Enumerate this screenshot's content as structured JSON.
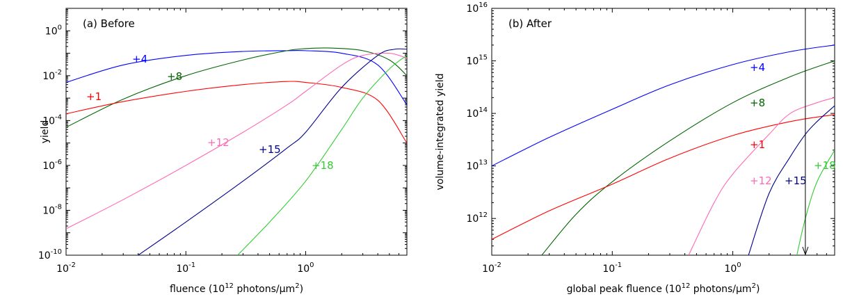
{
  "chart_data": [
    {
      "type": "line",
      "panel_label": "(a) Before",
      "xlabel": "fluence (10^12 photons/μm^2)",
      "ylabel": "yield",
      "xscale": "log",
      "yscale": "log",
      "xlim": [
        0.01,
        7
      ],
      "ylim": [
        1e-10,
        10
      ],
      "x_ticks": [
        0.01,
        0.1,
        1
      ],
      "y_ticks": [
        1e-10,
        1e-08,
        1e-06,
        0.0001,
        0.01,
        1
      ],
      "grid": false,
      "legend": "none",
      "series": [
        {
          "name": "+4",
          "color": "#0000ff",
          "x": [
            0.01,
            0.03,
            0.1,
            0.3,
            0.7,
            1.0,
            2.0,
            4.0,
            7.0
          ],
          "y": [
            0.005,
            0.03,
            0.08,
            0.12,
            0.13,
            0.13,
            0.1,
            0.03,
            0.0005
          ]
        },
        {
          "name": "+8",
          "color": "#006400",
          "x": [
            0.01,
            0.03,
            0.1,
            0.3,
            0.7,
            1.0,
            1.6,
            3.0,
            5.0,
            7.0
          ],
          "y": [
            5e-05,
            0.0009,
            0.01,
            0.05,
            0.13,
            0.16,
            0.17,
            0.13,
            0.05,
            0.01
          ]
        },
        {
          "name": "+1",
          "color": "#ff0000",
          "x": [
            0.01,
            0.03,
            0.1,
            0.3,
            0.7,
            1.0,
            2.0,
            4.0,
            7.0
          ],
          "y": [
            0.0002,
            0.0007,
            0.002,
            0.004,
            0.0055,
            0.005,
            0.003,
            0.0008,
            1e-05
          ]
        },
        {
          "name": "+12",
          "color": "#ff69b4",
          "x": [
            0.01,
            0.03,
            0.1,
            0.3,
            0.7,
            1.0,
            2.0,
            3.0,
            5.0,
            7.0
          ],
          "y": [
            1.5e-09,
            3e-08,
            1e-06,
            3e-05,
            0.0005,
            0.002,
            0.03,
            0.08,
            0.1,
            0.06
          ]
        },
        {
          "name": "+15",
          "color": "#00008b",
          "x": [
            0.04,
            0.1,
            0.3,
            0.7,
            1.0,
            2.0,
            4.0,
            5.5,
            7.0
          ],
          "y": [
            1e-10,
            3e-09,
            2e-07,
            6e-06,
            3e-05,
            0.003,
            0.08,
            0.15,
            0.15
          ]
        },
        {
          "name": "+18",
          "color": "#33cc33",
          "x": [
            0.27,
            0.5,
            1.0,
            2.0,
            3.0,
            5.0,
            7.0
          ],
          "y": [
            1e-10,
            3e-09,
            2e-07,
            4e-05,
            0.001,
            0.02,
            0.08
          ]
        }
      ]
    },
    {
      "type": "line",
      "panel_label": "(b) After",
      "xlabel": "global peak fluence (10^12 photons/μm^2)",
      "ylabel": "volume-integrated yield",
      "xscale": "log",
      "yscale": "log",
      "xlim": [
        0.01,
        7
      ],
      "ylim": [
        200000000000.0,
        1e+16
      ],
      "x_ticks": [
        0.01,
        0.1,
        1
      ],
      "y_ticks": [
        1000000000000.0,
        10000000000000.0,
        100000000000000.0,
        1000000000000000.0,
        1e+16
      ],
      "grid": false,
      "legend": "none",
      "marker_x": 4,
      "series": [
        {
          "name": "+4",
          "color": "#0000ff",
          "x": [
            0.01,
            0.03,
            0.1,
            0.3,
            1.0,
            3.0,
            7.0
          ],
          "y": [
            10000000000000.0,
            35000000000000.0,
            120000000000000.0,
            350000000000000.0,
            850000000000000.0,
            1500000000000000.0,
            2000000000000000.0
          ]
        },
        {
          "name": "+8",
          "color": "#006400",
          "x": [
            0.026,
            0.05,
            0.1,
            0.3,
            1.0,
            3.0,
            7.0
          ],
          "y": [
            200000000000.0,
            1200000000000.0,
            5000000000000.0,
            30000000000000.0,
            160000000000000.0,
            500000000000000.0,
            1000000000000000.0
          ]
        },
        {
          "name": "+1",
          "color": "#ff0000",
          "x": [
            0.01,
            0.03,
            0.1,
            0.3,
            1.0,
            3.0,
            7.0
          ],
          "y": [
            400000000000.0,
            1400000000000.0,
            4500000000000.0,
            14000000000000.0,
            38000000000000.0,
            70000000000000.0,
            95000000000000.0
          ]
        },
        {
          "name": "+12",
          "color": "#ff69b4",
          "x": [
            0.43,
            0.7,
            1.0,
            2.0,
            3.0,
            5.0,
            7.0
          ],
          "y": [
            200000000000.0,
            2000000000000.0,
            7000000000000.0,
            40000000000000.0,
            100000000000000.0,
            160000000000000.0,
            200000000000000.0
          ]
        },
        {
          "name": "+15",
          "color": "#00008b",
          "x": [
            1.35,
            2.0,
            3.0,
            4.0,
            5.0,
            7.0
          ],
          "y": [
            200000000000.0,
            3000000000000.0,
            15000000000000.0,
            40000000000000.0,
            70000000000000.0,
            140000000000000.0
          ]
        },
        {
          "name": "+18",
          "color": "#33cc33",
          "x": [
            3.4,
            4.0,
            5.0,
            7.0
          ],
          "y": [
            200000000000.0,
            1000000000000.0,
            5000000000000.0,
            20000000000000.0
          ]
        }
      ]
    }
  ]
}
